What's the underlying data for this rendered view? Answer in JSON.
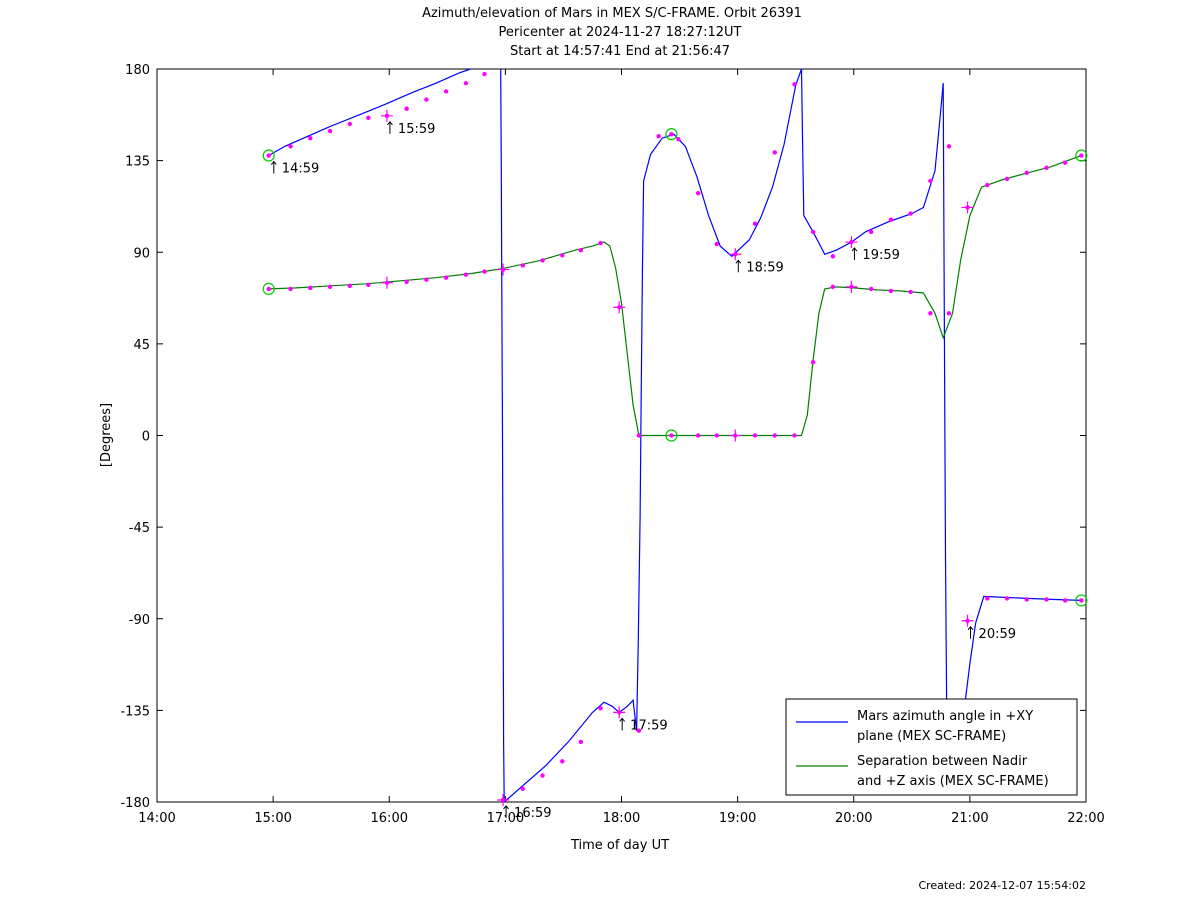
{
  "chart_data": {
    "type": "line",
    "title_lines": [
      "Azimuth/elevation of Mars in MEX S/C-FRAME.  Orbit 26391",
      "Pericenter at 2024-11-27 18:27:12UT",
      "Start at 14:57:41 End at 21:56:47"
    ],
    "xlabel": "Time of day UT",
    "ylabel": "[Degrees]",
    "footer": "Created: 2024-12-07 15:54:02",
    "x_unit": "hours of day (UT)",
    "xlim": [
      14,
      22
    ],
    "ylim": [
      -180,
      180
    ],
    "x_ticks": [
      {
        "v": 14,
        "label": "14:00"
      },
      {
        "v": 15,
        "label": "15:00"
      },
      {
        "v": 16,
        "label": "16:00"
      },
      {
        "v": 17,
        "label": "17:00"
      },
      {
        "v": 18,
        "label": "18:00"
      },
      {
        "v": 19,
        "label": "19:00"
      },
      {
        "v": 20,
        "label": "20:00"
      },
      {
        "v": 21,
        "label": "21:00"
      },
      {
        "v": 22,
        "label": "22:00"
      }
    ],
    "y_ticks": [
      {
        "v": -180,
        "label": "-180"
      },
      {
        "v": -135,
        "label": "-135"
      },
      {
        "v": -90,
        "label": "-90"
      },
      {
        "v": -45,
        "label": "-45"
      },
      {
        "v": 0,
        "label": "0"
      },
      {
        "v": 45,
        "label": "45"
      },
      {
        "v": 90,
        "label": "90"
      },
      {
        "v": 135,
        "label": "135"
      },
      {
        "v": 180,
        "label": "180"
      }
    ],
    "legend_position": "bottom-right",
    "series": [
      {
        "name_lines": [
          "Mars azimuth angle in +XY",
          "plane (MEX SC-FRAME)"
        ],
        "color": "#0000ff",
        "segments": [
          [
            [
              14.962,
              137.5
            ],
            [
              15.1,
              142
            ],
            [
              15.3,
              147
            ],
            [
              15.5,
              152
            ],
            [
              15.7,
              156.5
            ],
            [
              15.98,
              163
            ],
            [
              16.2,
              168.5
            ],
            [
              16.4,
              173
            ],
            [
              16.6,
              178
            ],
            [
              16.7,
              180
            ]
          ],
          [
            [
              16.96,
              180
            ],
            [
              16.965,
              130
            ],
            [
              16.97,
              60
            ],
            [
              16.975,
              0
            ],
            [
              16.98,
              -80
            ],
            [
              16.985,
              -150
            ],
            [
              16.99,
              -180
            ]
          ],
          [
            [
              16.99,
              -180
            ],
            [
              17.15,
              -172
            ],
            [
              17.35,
              -162
            ],
            [
              17.55,
              -150
            ],
            [
              17.75,
              -136
            ],
            [
              17.85,
              -131
            ],
            [
              17.92,
              -133
            ],
            [
              17.98,
              -136
            ],
            [
              18.05,
              -133
            ],
            [
              18.1,
              -130
            ],
            [
              18.13,
              -145
            ]
          ],
          [
            [
              18.13,
              -145
            ],
            [
              18.145,
              -100
            ],
            [
              18.16,
              -40
            ],
            [
              18.17,
              20
            ],
            [
              18.18,
              80
            ],
            [
              18.19,
              125
            ]
          ],
          [
            [
              18.19,
              125
            ],
            [
              18.25,
              138
            ],
            [
              18.35,
              146
            ],
            [
              18.45,
              148
            ],
            [
              18.55,
              142
            ],
            [
              18.65,
              127
            ],
            [
              18.75,
              108
            ],
            [
              18.85,
              93
            ],
            [
              18.95,
              88
            ],
            [
              19.1,
              96
            ],
            [
              19.2,
              107
            ],
            [
              19.3,
              122
            ],
            [
              19.4,
              143
            ],
            [
              19.5,
              172
            ],
            [
              19.55,
              180
            ]
          ],
          [
            [
              19.55,
              180
            ],
            [
              19.56,
              140
            ],
            [
              19.57,
              108
            ],
            [
              19.65,
              100
            ],
            [
              19.75,
              89
            ],
            [
              19.85,
              91
            ],
            [
              19.98,
              95
            ],
            [
              20.1,
              100
            ],
            [
              20.3,
              105
            ],
            [
              20.5,
              109
            ],
            [
              20.6,
              112
            ],
            [
              20.7,
              130
            ],
            [
              20.75,
              160
            ],
            [
              20.77,
              173
            ]
          ],
          [
            [
              20.77,
              173
            ],
            [
              20.78,
              60
            ],
            [
              20.79,
              -60
            ],
            [
              20.8,
              -135
            ]
          ],
          [
            [
              20.95,
              -135
            ],
            [
              21.0,
              -112
            ],
            [
              21.05,
              -92
            ],
            [
              21.12,
              -79
            ],
            [
              21.3,
              -79.5
            ],
            [
              21.5,
              -80
            ],
            [
              21.7,
              -80.5
            ],
            [
              21.96,
              -81
            ]
          ]
        ]
      },
      {
        "name_lines": [
          "Separation between Nadir",
          "and +Z axis (MEX SC-FRAME)"
        ],
        "color": "#008000",
        "segments": [
          [
            [
              14.962,
              72
            ],
            [
              15.2,
              72.5
            ],
            [
              15.5,
              73.5
            ],
            [
              15.8,
              74.5
            ],
            [
              16.1,
              76
            ],
            [
              16.4,
              77.5
            ],
            [
              16.7,
              79.5
            ],
            [
              16.98,
              82
            ],
            [
              17.3,
              86
            ],
            [
              17.6,
              91
            ],
            [
              17.75,
              93
            ],
            [
              17.85,
              95
            ],
            [
              17.9,
              93
            ],
            [
              17.95,
              82
            ],
            [
              18.0,
              65
            ],
            [
              18.05,
              40
            ],
            [
              18.1,
              15
            ],
            [
              18.15,
              0
            ],
            [
              18.4,
              0
            ],
            [
              18.7,
              0
            ],
            [
              19.0,
              0
            ],
            [
              19.3,
              0
            ],
            [
              19.55,
              0
            ],
            [
              19.6,
              10
            ],
            [
              19.65,
              37
            ],
            [
              19.7,
              60
            ],
            [
              19.75,
              72
            ],
            [
              19.85,
              73
            ],
            [
              20.0,
              72.5
            ],
            [
              20.2,
              71.5
            ],
            [
              20.4,
              71
            ],
            [
              20.6,
              70
            ],
            [
              20.7,
              60
            ],
            [
              20.77,
              48
            ],
            [
              20.85,
              60
            ],
            [
              20.92,
              86
            ],
            [
              21.0,
              108
            ],
            [
              21.1,
              122
            ],
            [
              21.3,
              126
            ],
            [
              21.5,
              129
            ],
            [
              21.7,
              132
            ],
            [
              21.96,
              137.5
            ]
          ]
        ]
      }
    ],
    "dot_color": "#ff00ff",
    "marker_color": "#00cc00",
    "annotations": [
      {
        "x": 14.98,
        "y": 137.5,
        "label": "14:59"
      },
      {
        "x": 15.98,
        "y": 157,
        "label": "15:59"
      },
      {
        "x": 16.98,
        "y": -179,
        "label": "16:59"
      },
      {
        "x": 17.98,
        "y": -136,
        "label": "17:59"
      },
      {
        "x": 18.98,
        "y": 89,
        "label": "18:59"
      },
      {
        "x": 19.98,
        "y": 95,
        "label": "19:59"
      },
      {
        "x": 20.98,
        "y": -91,
        "label": "20:59"
      }
    ],
    "cross_markers": [
      [
        15.98,
        157
      ],
      [
        16.98,
        -179
      ],
      [
        16.98,
        81.5
      ],
      [
        15.98,
        75
      ],
      [
        17.98,
        63
      ],
      [
        17.98,
        -136
      ],
      [
        18.98,
        89
      ],
      [
        18.98,
        0
      ],
      [
        19.98,
        95
      ],
      [
        19.98,
        73
      ],
      [
        20.98,
        -91
      ],
      [
        20.98,
        112
      ]
    ],
    "circle_markers": [
      [
        14.962,
        137.5
      ],
      [
        14.962,
        72
      ],
      [
        18.43,
        148
      ],
      [
        18.43,
        0
      ],
      [
        21.96,
        137.5
      ],
      [
        21.96,
        -81
      ]
    ],
    "dot_markers": [
      [
        15.15,
        142
      ],
      [
        15.32,
        146
      ],
      [
        15.49,
        149.5
      ],
      [
        15.66,
        153
      ],
      [
        15.82,
        156
      ],
      [
        16.15,
        160.5
      ],
      [
        16.32,
        165
      ],
      [
        16.49,
        169
      ],
      [
        16.66,
        173
      ],
      [
        16.82,
        177.5
      ],
      [
        17.15,
        -173.5
      ],
      [
        17.32,
        -167
      ],
      [
        17.49,
        -160
      ],
      [
        17.65,
        -150.5
      ],
      [
        17.82,
        -134
      ],
      [
        18.15,
        -145
      ],
      [
        18.32,
        147
      ],
      [
        18.49,
        145.5
      ],
      [
        18.66,
        119
      ],
      [
        18.82,
        94
      ],
      [
        19.15,
        104
      ],
      [
        19.32,
        139
      ],
      [
        19.49,
        172.5
      ],
      [
        19.65,
        100
      ],
      [
        19.82,
        88
      ],
      [
        20.15,
        100
      ],
      [
        20.32,
        106
      ],
      [
        20.49,
        109
      ],
      [
        20.66,
        125
      ],
      [
        20.82,
        142
      ],
      [
        21.15,
        -80
      ],
      [
        21.32,
        -80
      ],
      [
        21.49,
        -80.5
      ],
      [
        21.66,
        -80.5
      ],
      [
        21.82,
        -81
      ],
      [
        15.15,
        72
      ],
      [
        15.32,
        72.5
      ],
      [
        15.49,
        73
      ],
      [
        15.66,
        73.5
      ],
      [
        15.82,
        74
      ],
      [
        16.15,
        75.5
      ],
      [
        16.32,
        76.5
      ],
      [
        16.49,
        77.5
      ],
      [
        16.66,
        79
      ],
      [
        16.82,
        80.5
      ],
      [
        17.15,
        83.5
      ],
      [
        17.32,
        86
      ],
      [
        17.49,
        88.5
      ],
      [
        17.65,
        91
      ],
      [
        17.82,
        94.5
      ],
      [
        18.15,
        0
      ],
      [
        18.66,
        0
      ],
      [
        18.82,
        0
      ],
      [
        19.15,
        0
      ],
      [
        19.32,
        0
      ],
      [
        19.49,
        0
      ],
      [
        19.65,
        36
      ],
      [
        19.82,
        73
      ],
      [
        20.15,
        72
      ],
      [
        20.32,
        71
      ],
      [
        20.49,
        70.5
      ],
      [
        20.66,
        60
      ],
      [
        20.82,
        60
      ],
      [
        21.15,
        123
      ],
      [
        21.32,
        126
      ],
      [
        21.49,
        129
      ],
      [
        21.66,
        131.5
      ],
      [
        21.82,
        134
      ]
    ]
  }
}
